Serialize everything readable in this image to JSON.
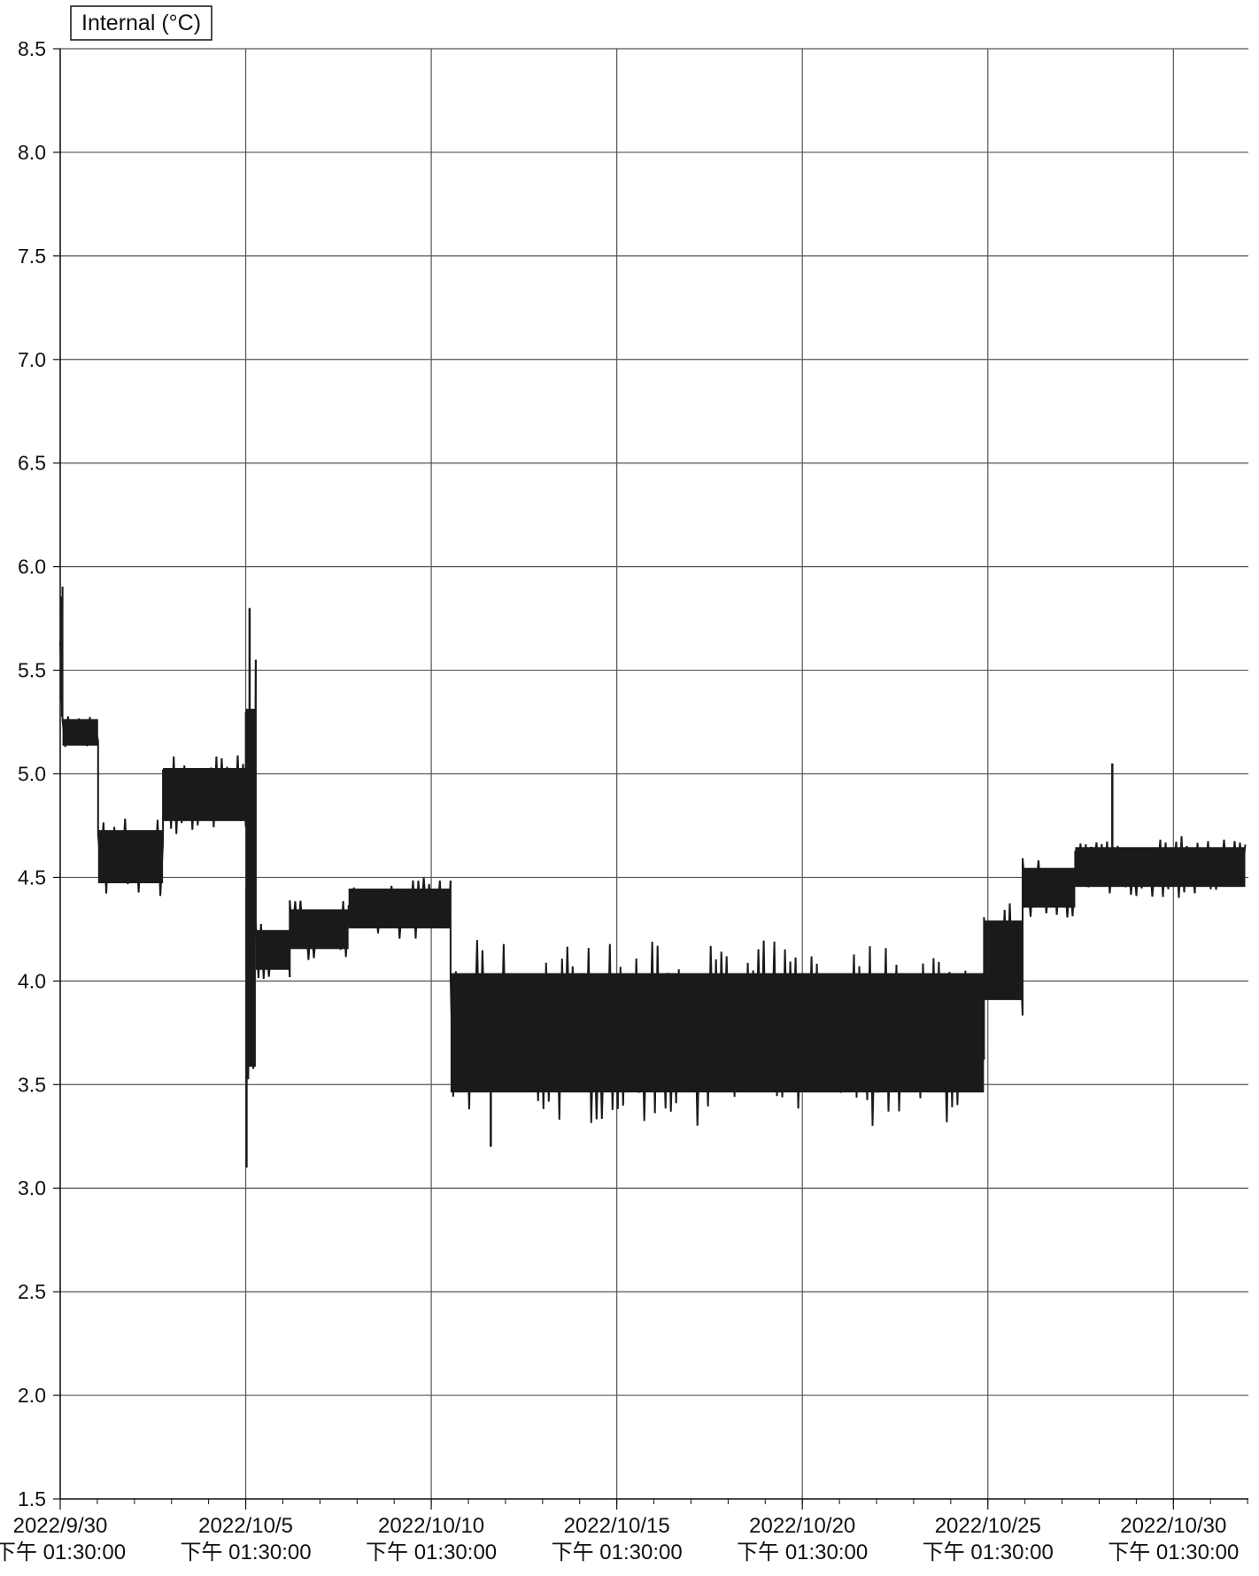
{
  "chart_data": {
    "type": "line",
    "title": "",
    "xlabel": "",
    "ylabel": "",
    "legend": {
      "label": "Internal (°C)",
      "placement": "top-left"
    },
    "colors": {
      "line": "#1a1a1a",
      "grid": "#555555",
      "background": "#ffffff"
    },
    "grid": true,
    "ylim": [
      1.5,
      8.5
    ],
    "yticks": [
      "1.5",
      "2.0",
      "2.5",
      "3.0",
      "3.5",
      "4.0",
      "4.5",
      "5.0",
      "5.5",
      "6.0",
      "6.5",
      "7.0",
      "7.5",
      "8.0",
      "8.5"
    ],
    "xlim": [
      "2022-09-30 13:30",
      "2022-11-01 14:00"
    ],
    "xticks": [
      {
        "date": "2022/9/30",
        "time": "下午 01:30:00"
      },
      {
        "date": "2022/10/5",
        "time": "下午 01:30:00"
      },
      {
        "date": "2022/10/10",
        "time": "下午 01:30:00"
      },
      {
        "date": "2022/10/15",
        "time": "下午 01:30:00"
      },
      {
        "date": "2022/10/20",
        "time": "下午 01:30:00"
      },
      {
        "date": "2022/10/25",
        "time": "下午 01:30:00"
      },
      {
        "date": "2022/10/30",
        "time": "下午 01:30:00"
      }
    ],
    "series": [
      {
        "name": "Internal (°C)",
        "segments": [
          {
            "start": "2022-09-30 13:30",
            "end": "2022-09-30 15:00",
            "low": 5.2,
            "high": 6.0
          },
          {
            "start": "2022-09-30 15:00",
            "end": "2022-10-01 14:00",
            "low": 5.1,
            "high": 5.3
          },
          {
            "start": "2022-10-01 14:00",
            "end": "2022-10-03 08:00",
            "low": 4.4,
            "high": 4.8
          },
          {
            "start": "2022-10-03 08:00",
            "end": "2022-10-05 13:30",
            "low": 4.7,
            "high": 5.1
          },
          {
            "start": "2022-10-05 13:30",
            "end": "2022-10-05 20:00",
            "low": 3.1,
            "high": 5.8
          },
          {
            "start": "2022-10-05 20:00",
            "end": "2022-10-06 18:00",
            "low": 4.0,
            "high": 4.3
          },
          {
            "start": "2022-10-06 18:00",
            "end": "2022-10-08 08:00",
            "low": 4.1,
            "high": 4.4
          },
          {
            "start": "2022-10-08 08:00",
            "end": "2022-10-11 02:00",
            "low": 4.2,
            "high": 4.5
          },
          {
            "start": "2022-10-11 02:00",
            "end": "2022-10-25 11:00",
            "low": 3.3,
            "high": 4.2
          },
          {
            "start": "2022-10-25 11:00",
            "end": "2022-10-26 12:00",
            "low": 3.8,
            "high": 4.4
          },
          {
            "start": "2022-10-26 12:00",
            "end": "2022-10-27 22:00",
            "low": 4.3,
            "high": 4.6
          },
          {
            "start": "2022-10-27 22:00",
            "end": "2022-11-01 12:00",
            "low": 4.4,
            "high": 4.7
          }
        ],
        "spikes": [
          {
            "time": "2022-10-05 16:00",
            "value": 5.8
          },
          {
            "time": "2022-10-05 14:00",
            "value": 3.1
          },
          {
            "time": "2022-10-12 04:00",
            "value": 3.2
          },
          {
            "time": "2022-10-28 22:00",
            "value": 5.05
          }
        ]
      }
    ]
  }
}
